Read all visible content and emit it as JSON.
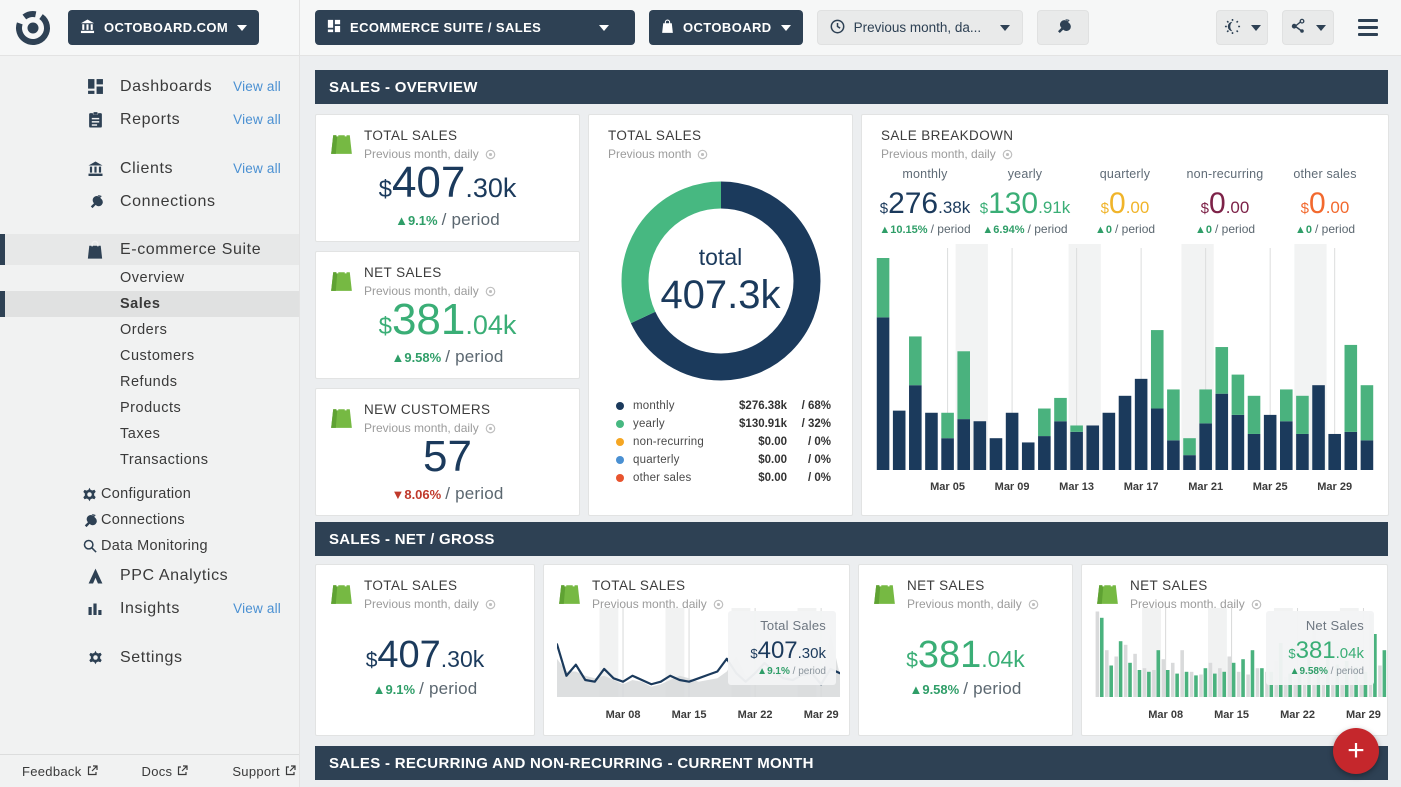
{
  "header": {
    "site_dropdown": {
      "label": "OCTOBOARD.COM"
    },
    "dashboard_dropdown": {
      "label": "ECOMMERCE SUITE / SALES"
    },
    "datasource_dropdown": {
      "label": "OCTOBOARD"
    },
    "period_dropdown": {
      "label": "Previous month, da..."
    }
  },
  "sidebar": {
    "items": [
      {
        "id": "dashboards",
        "label": "Dashboards",
        "icon": "dashboards-icon",
        "view_all": "View all",
        "type": "top"
      },
      {
        "id": "reports",
        "label": "Reports",
        "icon": "reports-icon",
        "view_all": "View all",
        "type": "top"
      },
      {
        "type": "gap"
      },
      {
        "id": "clients",
        "label": "Clients",
        "icon": "bank-icon",
        "view_all": "View all",
        "type": "top"
      },
      {
        "id": "connections",
        "label": "Connections",
        "icon": "plug-icon",
        "type": "top"
      },
      {
        "type": "gap"
      },
      {
        "id": "ecommerce-suite",
        "label": "E-commerce Suite",
        "icon": "bag-icon",
        "type": "top",
        "active": true
      },
      {
        "id": "overview",
        "label": "Overview",
        "type": "sub"
      },
      {
        "id": "sales",
        "label": "Sales",
        "type": "sub",
        "selected": true
      },
      {
        "id": "orders",
        "label": "Orders",
        "type": "sub"
      },
      {
        "id": "customers",
        "label": "Customers",
        "type": "sub"
      },
      {
        "id": "refunds",
        "label": "Refunds",
        "type": "sub"
      },
      {
        "id": "products",
        "label": "Products",
        "type": "sub"
      },
      {
        "id": "taxes",
        "label": "Taxes",
        "type": "sub"
      },
      {
        "id": "transactions",
        "label": "Transactions",
        "type": "sub"
      },
      {
        "type": "smallgap"
      },
      {
        "id": "configuration",
        "label": "Configuration",
        "icon": "gear-icon",
        "type": "subtool"
      },
      {
        "id": "connections-sub",
        "label": "Connections",
        "icon": "plug-icon",
        "type": "subtool"
      },
      {
        "id": "data-monitoring",
        "label": "Data Monitoring",
        "icon": "magnifier-icon",
        "type": "subtool"
      },
      {
        "id": "ppc-analytics",
        "label": "PPC Analytics",
        "icon": "ppc-icon",
        "type": "top"
      },
      {
        "id": "insights",
        "label": "Insights",
        "icon": "insights-icon",
        "view_all": "View all",
        "type": "top"
      },
      {
        "type": "gap"
      },
      {
        "id": "settings",
        "label": "Settings",
        "icon": "gear-icon",
        "type": "top"
      }
    ],
    "footer_links": [
      {
        "label": "Feedback"
      },
      {
        "label": "Docs"
      },
      {
        "label": "Support"
      }
    ]
  },
  "sections": {
    "overview_title": "SALES - OVERVIEW",
    "netgross_title": "SALES - NET / GROSS",
    "recurring_title": "SALES - RECURRING AND NON-RECURRING - CURRENT MONTH"
  },
  "cards": {
    "total_sales": {
      "title": "TOTAL SALES",
      "subtitle": "Previous month, daily",
      "currency": "$",
      "main": "407",
      "suffix": ".30k",
      "arrow": "▲",
      "delta": "9.1%",
      "direction": "up",
      "period": "/ period"
    },
    "net_sales": {
      "title": "NET SALES",
      "subtitle": "Previous month, daily",
      "currency": "$",
      "main": "381",
      "suffix": ".04k",
      "arrow": "▲",
      "delta": "9.58%",
      "direction": "up",
      "period": "/ period"
    },
    "new_customers": {
      "title": "NEW CUSTOMERS",
      "subtitle": "Previous month, daily",
      "currency": "",
      "main": "57",
      "suffix": "",
      "arrow": "▼",
      "delta": "8.06%",
      "direction": "down",
      "period": "/ period"
    },
    "donut": {
      "title": "TOTAL SALES",
      "subtitle": "Previous month",
      "center_label": "total",
      "center_value": "407.3k"
    },
    "breakdown": {
      "title": "SALE BREAKDOWN",
      "subtitle": "Previous month, daily",
      "metrics": [
        {
          "label": "monthly",
          "currency": "$",
          "main": "276",
          "suffix": ".38k",
          "color": "#1b3a5c",
          "arrow": "▲",
          "delta": "10.15%",
          "period": "/ period"
        },
        {
          "label": "yearly",
          "currency": "$",
          "main": "130",
          "suffix": ".91k",
          "color": "#3aae76",
          "arrow": "▲",
          "delta": "6.94%",
          "period": "/ period"
        },
        {
          "label": "quarterly",
          "currency": "$",
          "main": "0",
          "suffix": ".00",
          "color": "#f0b42a",
          "arrow": "▲",
          "delta": "0",
          "period": "/ period"
        },
        {
          "label": "non-recurring",
          "currency": "$",
          "main": "0",
          "suffix": ".00",
          "color": "#7d2248",
          "arrow": "▲",
          "delta": "0",
          "period": "/ period"
        },
        {
          "label": "other sales",
          "currency": "$",
          "main": "0",
          "suffix": ".00",
          "color": "#f2692e",
          "arrow": "▲",
          "delta": "0",
          "period": "/ period"
        }
      ]
    },
    "ng_total_chart": {
      "title": "TOTAL SALES",
      "subtitle": "Previous month, daily",
      "tooltip": {
        "label": "Total Sales",
        "currency": "$",
        "main": "407",
        "suffix": ".30k",
        "arrow": "▲",
        "delta": "9.1%",
        "period": "/ period"
      }
    },
    "ng_net_chart": {
      "title": "NET SALES",
      "subtitle": "Previous month, daily",
      "tooltip": {
        "label": "Net Sales",
        "currency": "$",
        "main": "381",
        "suffix": ".04k",
        "arrow": "▲",
        "delta": "9.58%",
        "period": "/ period"
      }
    }
  },
  "fab_label": "+",
  "chart_data": [
    {
      "id": "total-sales-donut",
      "type": "pie",
      "title": "TOTAL SALES",
      "subtitle": "Previous month",
      "center": {
        "label": "total",
        "value": "407.3k"
      },
      "series": [
        {
          "name": "monthly",
          "display": "$276.38k",
          "pct": 68,
          "color": "#1b3a5c"
        },
        {
          "name": "yearly",
          "display": "$130.91k",
          "pct": 32,
          "color": "#47b881"
        },
        {
          "name": "non-recurring",
          "display": "$0.00",
          "pct": 0,
          "color": "#f5a623"
        },
        {
          "name": "quarterly",
          "display": "$0.00",
          "pct": 0,
          "color": "#4a90d2"
        },
        {
          "name": "other sales",
          "display": "$0.00",
          "pct": 0,
          "color": "#e8542e"
        }
      ],
      "legend_position": "bottom"
    },
    {
      "id": "sale-breakdown-bars",
      "type": "bar",
      "stacked": true,
      "values_unit": "relative_0_100_estimated",
      "categories": [
        "Mar 01",
        "Mar 02",
        "Mar 03",
        "Mar 04",
        "Mar 05",
        "Mar 06",
        "Mar 07",
        "Mar 08",
        "Mar 09",
        "Mar 10",
        "Mar 11",
        "Mar 12",
        "Mar 13",
        "Mar 14",
        "Mar 15",
        "Mar 16",
        "Mar 17",
        "Mar 18",
        "Mar 19",
        "Mar 20",
        "Mar 21",
        "Mar 22",
        "Mar 23",
        "Mar 24",
        "Mar 25",
        "Mar 26",
        "Mar 27",
        "Mar 28",
        "Mar 29",
        "Mar 30",
        "Mar 31"
      ],
      "x_labels_shown": [
        "Mar 05",
        "Mar 09",
        "Mar 13",
        "Mar 17",
        "Mar 21",
        "Mar 25",
        "Mar 29"
      ],
      "label_days": [
        5,
        9,
        13,
        17,
        21,
        25,
        29
      ],
      "weekend_band_days": [
        6,
        7,
        13,
        14,
        20,
        21,
        27,
        28
      ],
      "series": [
        {
          "name": "monthly",
          "color": "#1b3a5c",
          "values": [
            72,
            28,
            40,
            27,
            15,
            24,
            23,
            15,
            27,
            13,
            16,
            23,
            18,
            21,
            27,
            35,
            43,
            29,
            14,
            7,
            22,
            36,
            26,
            17,
            26,
            23,
            17,
            40,
            17,
            18,
            14
          ]
        },
        {
          "name": "yearly",
          "color": "#4ab27e",
          "values": [
            28,
            0,
            23,
            0,
            12,
            32,
            0,
            0,
            0,
            0,
            13,
            11,
            3,
            0,
            0,
            0,
            0,
            37,
            24,
            8,
            16,
            22,
            19,
            18,
            0,
            15,
            18,
            0,
            0,
            41,
            26
          ]
        }
      ]
    },
    {
      "id": "total-sales-line",
      "type": "line",
      "values_unit": "relative_0_100_estimated",
      "categories": [
        "Mar 01",
        "Mar 02",
        "Mar 03",
        "Mar 04",
        "Mar 05",
        "Mar 06",
        "Mar 07",
        "Mar 08",
        "Mar 09",
        "Mar 10",
        "Mar 11",
        "Mar 12",
        "Mar 13",
        "Mar 14",
        "Mar 15",
        "Mar 16",
        "Mar 17",
        "Mar 18",
        "Mar 19",
        "Mar 20",
        "Mar 21",
        "Mar 22",
        "Mar 23",
        "Mar 24",
        "Mar 25",
        "Mar 26",
        "Mar 27",
        "Mar 28",
        "Mar 29",
        "Mar 30",
        "Mar 31"
      ],
      "x_labels_shown": [
        "Mar 08",
        "Mar 15",
        "Mar 22",
        "Mar 29"
      ],
      "label_days": [
        8,
        15,
        22,
        29
      ],
      "weekend_band_days": [
        6,
        7,
        13,
        14,
        20,
        21,
        27,
        28
      ],
      "series": [
        {
          "name": "previous period",
          "type": "area",
          "color": "#d7d9da",
          "values": [
            45,
            30,
            30,
            25,
            22,
            25,
            20,
            15,
            20,
            18,
            12,
            15,
            20,
            25,
            22,
            18,
            20,
            22,
            30,
            48,
            25,
            22,
            30,
            40,
            28,
            20,
            22,
            35,
            20,
            75,
            25
          ]
        },
        {
          "name": "total sales",
          "type": "line",
          "color": "#1b3a5c",
          "values": [
            62,
            25,
            38,
            20,
            18,
            33,
            22,
            18,
            25,
            20,
            15,
            18,
            25,
            20,
            18,
            22,
            26,
            30,
            45,
            28,
            18,
            28,
            40,
            30,
            22,
            20,
            26,
            28,
            15,
            33,
            28
          ]
        }
      ]
    },
    {
      "id": "net-sales-bars",
      "type": "bar",
      "grouped": true,
      "values_unit": "relative_0_100_estimated",
      "categories": [
        "Mar 01",
        "Mar 02",
        "Mar 03",
        "Mar 04",
        "Mar 05",
        "Mar 06",
        "Mar 07",
        "Mar 08",
        "Mar 09",
        "Mar 10",
        "Mar 11",
        "Mar 12",
        "Mar 13",
        "Mar 14",
        "Mar 15",
        "Mar 16",
        "Mar 17",
        "Mar 18",
        "Mar 19",
        "Mar 20",
        "Mar 21",
        "Mar 22",
        "Mar 23",
        "Mar 24",
        "Mar 25",
        "Mar 26",
        "Mar 27",
        "Mar 28",
        "Mar 29",
        "Mar 30",
        "Mar 31"
      ],
      "x_labels_shown": [
        "Mar 08",
        "Mar 15",
        "Mar 22",
        "Mar 29"
      ],
      "label_days": [
        8,
        15,
        22,
        29
      ],
      "weekend_band_days": [
        6,
        7,
        13,
        14,
        20,
        21,
        27,
        28
      ],
      "series": [
        {
          "name": "previous period",
          "color": "#d9dadb",
          "values": [
            95,
            52,
            45,
            58,
            48,
            32,
            30,
            42,
            38,
            52,
            28,
            25,
            38,
            32,
            45,
            28,
            25,
            32,
            28,
            40,
            22,
            20,
            28,
            75,
            32,
            28,
            25,
            32,
            28,
            92,
            35
          ]
        },
        {
          "name": "net sales",
          "color": "#4ab27e",
          "values": [
            88,
            35,
            62,
            38,
            30,
            28,
            52,
            30,
            26,
            28,
            24,
            32,
            26,
            28,
            38,
            42,
            52,
            32,
            28,
            60,
            26,
            26,
            45,
            28,
            52,
            36,
            40,
            33,
            28,
            70,
            52
          ]
        }
      ]
    }
  ]
}
